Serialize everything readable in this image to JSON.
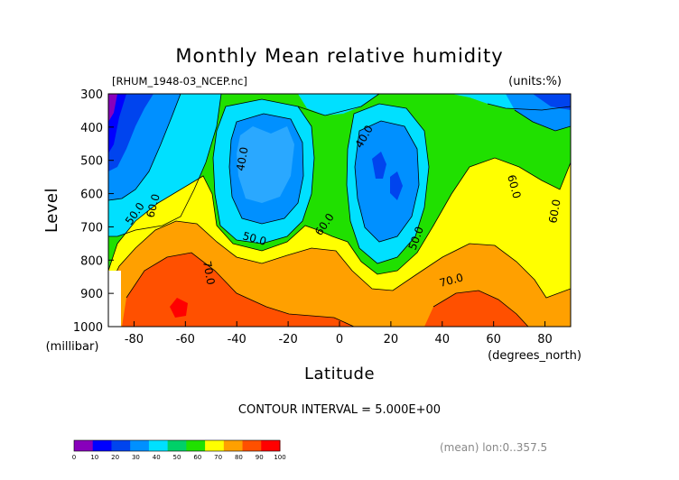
{
  "chart_data": {
    "type": "heatmap",
    "title": "Monthly Mean relative humidity",
    "file_label": "[RHUM_1948-03_NCEP.nc]",
    "units_label": "(units:%)",
    "xlabel": "Latitude",
    "x_units": "(degrees_north)",
    "ylabel": "Level",
    "y_units": "(millibar)",
    "contour_interval_text": "CONTOUR INTERVAL = 5.000E+00",
    "footer_note": "(mean) lon:0..357.5",
    "xlim": [
      -90,
      90
    ],
    "ylim": [
      1000,
      300
    ],
    "x_ticks": [
      "-80",
      "-60",
      "-40",
      "-20",
      "0",
      "20",
      "40",
      "60",
      "80"
    ],
    "y_ticks": [
      "300",
      "400",
      "500",
      "600",
      "700",
      "800",
      "900",
      "1000"
    ],
    "contour_labels": [
      "50.0",
      "60.0",
      "40.0",
      "50.0",
      "60.0",
      "40.0",
      "70.0",
      "50.0",
      "70.0",
      "60.0",
      "60.0"
    ],
    "colorbar": {
      "ticks": [
        "0",
        "10",
        "20",
        "30",
        "40",
        "50",
        "60",
        "70",
        "80",
        "90",
        "100"
      ],
      "colors": [
        "#8800bb",
        "#0000ff",
        "#0044ee",
        "#0090ff",
        "#00e0ff",
        "#00d068",
        "#20e000",
        "#ffff00",
        "#ffa000",
        "#ff5000",
        "#ff0000"
      ]
    }
  }
}
